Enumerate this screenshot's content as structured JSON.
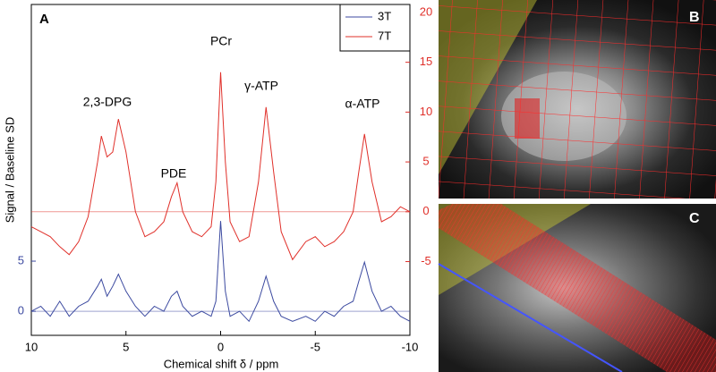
{
  "chart_data": {
    "type": "line",
    "panel_label": "A",
    "xlabel": "Chemical shift δ / ppm",
    "ylabel": "Signal / Baseline SD",
    "x": [
      10,
      9.5,
      9,
      8.5,
      8,
      7.5,
      7,
      6.5,
      6.3,
      6,
      5.7,
      5.4,
      5,
      4.5,
      4,
      3.5,
      3,
      2.6,
      2.3,
      2,
      1.5,
      1,
      0.5,
      0.25,
      0,
      -0.25,
      -0.5,
      -1,
      -1.5,
      -2,
      -2.4,
      -2.8,
      -3.2,
      -3.8,
      -4.5,
      -5,
      -5.5,
      -6,
      -6.5,
      -7,
      -7.3,
      -7.6,
      -8,
      -8.5,
      -9,
      -9.5,
      -10
    ],
    "series": [
      {
        "name": "3T",
        "color": "#3c4aa0",
        "axis": "y",
        "values": [
          0,
          0.5,
          -0.5,
          1,
          -0.5,
          0.5,
          1,
          2.5,
          3.2,
          1.5,
          2.5,
          3.7,
          2,
          0.5,
          -0.5,
          0.5,
          0,
          1.5,
          2,
          0.5,
          -0.5,
          0,
          -0.5,
          1,
          9,
          2,
          -0.5,
          0,
          -1,
          1,
          3.5,
          1,
          -0.5,
          -1,
          -0.5,
          -1,
          0,
          -0.5,
          0.5,
          1,
          3,
          4.9,
          2,
          0,
          0.5,
          -0.5,
          -1
        ]
      },
      {
        "name": "7T",
        "color": "#e0302a",
        "axis": "y2",
        "values": [
          -1.5,
          -2,
          -2.5,
          -3.5,
          -4.3,
          -3,
          -0.5,
          5,
          7.6,
          5.5,
          6,
          9.3,
          6,
          0,
          -2.5,
          -2,
          -1,
          1.5,
          2.9,
          0,
          -2,
          -2.5,
          -1.5,
          3,
          14,
          5,
          -1,
          -3,
          -2.5,
          3,
          10.5,
          4,
          -2,
          -4.8,
          -3,
          -2.5,
          -3.5,
          -3,
          -2,
          0,
          4,
          7.8,
          3,
          -1,
          -0.5,
          0.5,
          0
        ]
      }
    ],
    "xlim": [
      10,
      -10
    ],
    "xticks": [
      10,
      5,
      0,
      -5,
      -10
    ],
    "ylim": [
      -2.4,
      30.6
    ],
    "yticks": [
      0,
      5
    ],
    "y2lim": [
      -12.4,
      20.8
    ],
    "y2ticks": [
      -5,
      0,
      5,
      10,
      15,
      20
    ],
    "legend": "upper right",
    "annotations": [
      "2,3-DPG",
      "PDE",
      "PCr",
      "γ-ATP",
      "α-ATP"
    ]
  },
  "image_labels": [
    "B",
    "C"
  ]
}
